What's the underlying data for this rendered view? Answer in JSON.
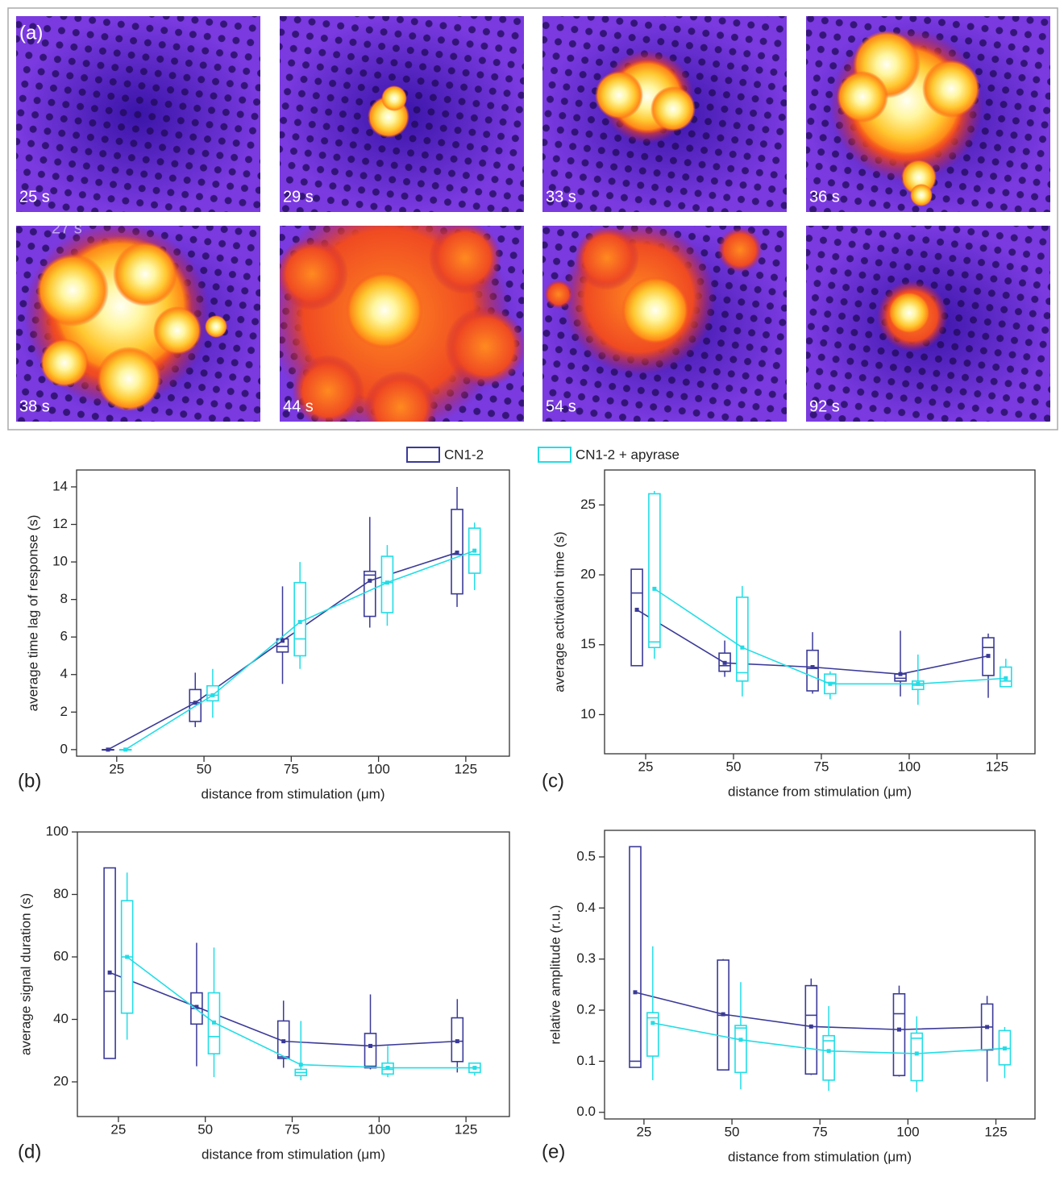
{
  "panel_a": {
    "label": "(a)",
    "frames": [
      "25 s",
      "29 s",
      "33 s",
      "36 s",
      "38 s",
      "44 s",
      "54 s",
      "92 s"
    ],
    "overlay_text": "27 s"
  },
  "chart_data": [
    {
      "type": "box",
      "panel": "(b)",
      "ylabel": "average time lag of response (s)",
      "xlabel": "distance from stimulation (μm)",
      "xlim": [
        13.5,
        137.5
      ],
      "xticks": [
        25,
        50,
        75,
        100,
        125
      ],
      "ylim": [
        -0.35,
        14.9
      ],
      "yticks": [
        0,
        2,
        4,
        6,
        8,
        10,
        12,
        14
      ],
      "series": [
        {
          "name": "CN1-2",
          "color": "#3b3a98",
          "x": [
            22.5,
            47.5,
            72.5,
            97.5,
            122.5
          ],
          "values": [
            0,
            2.5,
            5.8,
            9.0,
            10.5
          ],
          "whisker_low": [
            0,
            1.2,
            3.5,
            6.5,
            7.6
          ],
          "q1": [
            0,
            1.5,
            5.2,
            7.1,
            8.3
          ],
          "median": [
            0,
            2.5,
            5.5,
            9.3,
            10.4
          ],
          "q3": [
            0,
            3.2,
            5.9,
            9.5,
            12.8
          ],
          "whisker_high": [
            0,
            4.1,
            8.7,
            12.4,
            14.0
          ]
        },
        {
          "name": "CN1-2 + apyrase",
          "color": "#22dde6",
          "x": [
            27.5,
            52.5,
            77.5,
            102.5,
            127.5
          ],
          "values": [
            0,
            2.9,
            6.8,
            8.9,
            10.6
          ],
          "whisker_low": [
            0,
            1.7,
            4.3,
            6.6,
            8.5
          ],
          "q1": [
            0,
            2.6,
            5.0,
            7.3,
            9.4
          ],
          "median": [
            0,
            2.9,
            5.9,
            8.9,
            10.4
          ],
          "q3": [
            0,
            3.4,
            8.9,
            10.3,
            11.8
          ],
          "whisker_high": [
            0,
            4.3,
            10.0,
            10.9,
            12.1
          ]
        }
      ]
    },
    {
      "type": "box",
      "panel": "(c)",
      "ylabel": "average activation time (s)",
      "xlabel": "distance from stimulation (μm)",
      "xlim": [
        13.3,
        135.8
      ],
      "xticks": [
        25,
        50,
        75,
        100,
        125
      ],
      "ylim": [
        7.2,
        27.5
      ],
      "yticks": [
        10,
        15,
        20,
        25
      ],
      "series": [
        {
          "name": "CN1-2",
          "color": "#3b3a98",
          "x": [
            22.5,
            47.5,
            72.5,
            97.5,
            122.5
          ],
          "values": [
            17.5,
            13.7,
            13.4,
            12.9,
            14.2
          ],
          "whisker_low": [
            13.5,
            12.7,
            11.5,
            11.3,
            11.2
          ],
          "q1": [
            13.5,
            13.1,
            11.7,
            12.4,
            12.8
          ],
          "median": [
            18.7,
            13.5,
            13.3,
            12.6,
            14.8
          ],
          "q3": [
            20.4,
            14.4,
            14.6,
            12.9,
            15.5
          ],
          "whisker_high": [
            20.4,
            15.3,
            15.9,
            16.0,
            15.8
          ]
        },
        {
          "name": "CN1-2 + apyrase",
          "color": "#22dde6",
          "x": [
            27.5,
            52.5,
            77.5,
            102.5,
            127.5
          ],
          "values": [
            19.0,
            14.8,
            12.2,
            12.2,
            12.6
          ],
          "whisker_low": [
            14.0,
            11.3,
            11.1,
            10.7,
            12.0
          ],
          "q1": [
            14.8,
            12.4,
            11.5,
            11.8,
            12.0
          ],
          "median": [
            15.2,
            13.0,
            12.3,
            12.1,
            12.4
          ],
          "q3": [
            25.8,
            18.4,
            12.9,
            12.4,
            13.4
          ],
          "whisker_high": [
            26.0,
            19.2,
            13.1,
            14.3,
            14.0
          ]
        }
      ]
    },
    {
      "type": "box",
      "panel": "(d)",
      "ylabel": "average signal duration (s)",
      "xlabel": "distance from stimulation (μm)",
      "xlim": [
        13.2,
        137.5
      ],
      "xticks": [
        25,
        50,
        75,
        100,
        125
      ],
      "ylim": [
        8.9,
        100
      ],
      "yticks": [
        20,
        40,
        60,
        80,
        100
      ],
      "series": [
        {
          "name": "CN1-2",
          "color": "#3b3a98",
          "x": [
            22.5,
            47.5,
            72.5,
            97.5,
            122.5
          ],
          "values": [
            55,
            44,
            33,
            31.5,
            33
          ],
          "whisker_low": [
            27.5,
            25,
            24.5,
            24,
            23
          ],
          "q1": [
            27.5,
            38.5,
            27.5,
            24.5,
            26.5
          ],
          "median": [
            49,
            43.5,
            28,
            25,
            33
          ],
          "q3": [
            88.5,
            48.5,
            39.5,
            35.5,
            40.5
          ],
          "whisker_high": [
            88.5,
            64.5,
            46,
            48,
            46.5
          ]
        },
        {
          "name": "CN1-2 + apyrase",
          "color": "#22dde6",
          "x": [
            27.5,
            52.5,
            77.5,
            102.5,
            127.5
          ],
          "values": [
            60,
            39,
            25.5,
            24.5,
            24.5
          ],
          "whisker_low": [
            33.5,
            21.5,
            20.5,
            21.5,
            22
          ],
          "q1": [
            42,
            29,
            22,
            22.5,
            23
          ],
          "median": [
            60,
            34.5,
            23,
            24,
            24.5
          ],
          "q3": [
            78,
            48.5,
            24,
            26,
            26
          ],
          "whisker_high": [
            87,
            63,
            39.5,
            31.5,
            26
          ]
        }
      ]
    },
    {
      "type": "box",
      "panel": "(e)",
      "ylabel": "relative amplitude (r.u.)",
      "xlabel": "distance from stimulation (μm)",
      "xlim": [
        13.8,
        136.1
      ],
      "xticks": [
        25,
        50,
        75,
        100,
        125
      ],
      "ylim": [
        -0.013,
        0.552
      ],
      "yticks": [
        {
          "value": 0,
          "label": "0.0"
        },
        0.1,
        0.2,
        0.3,
        0.4,
        0.5
      ],
      "series": [
        {
          "name": "CN1-2",
          "color": "#3b3a98",
          "x": [
            22.5,
            47.5,
            72.5,
            97.5,
            122.5
          ],
          "values": [
            0.235,
            0.192,
            0.168,
            0.162,
            0.167
          ],
          "whisker_low": [
            0.088,
            0.083,
            0.073,
            0.07,
            0.06
          ],
          "q1": [
            0.088,
            0.083,
            0.075,
            0.072,
            0.122
          ],
          "median": [
            0.1,
            0.19,
            0.19,
            0.193,
            0.167
          ],
          "q3": [
            0.52,
            0.298,
            0.248,
            0.232,
            0.212
          ],
          "whisker_high": [
            0.52,
            0.3,
            0.262,
            0.248,
            0.228
          ]
        },
        {
          "name": "CN1-2 + apyrase",
          "color": "#22dde6",
          "x": [
            27.5,
            52.5,
            77.5,
            102.5,
            127.5
          ],
          "values": [
            0.175,
            0.142,
            0.12,
            0.115,
            0.125
          ],
          "whisker_low": [
            0.063,
            0.045,
            0.042,
            0.04,
            0.067
          ],
          "q1": [
            0.11,
            0.078,
            0.063,
            0.062,
            0.093
          ],
          "median": [
            0.185,
            0.165,
            0.14,
            0.145,
            0.125
          ],
          "q3": [
            0.195,
            0.17,
            0.15,
            0.155,
            0.16
          ],
          "whisker_high": [
            0.325,
            0.255,
            0.208,
            0.188,
            0.167
          ]
        }
      ]
    }
  ]
}
